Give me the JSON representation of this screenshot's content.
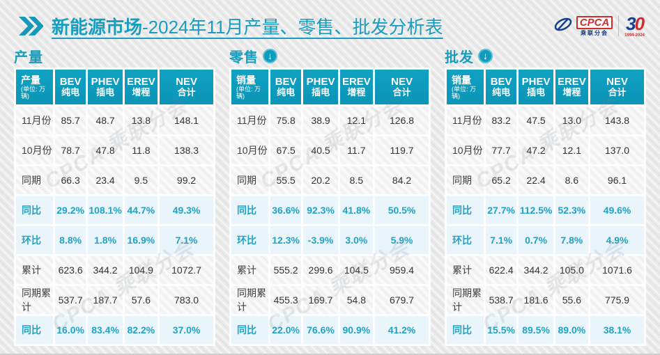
{
  "header": {
    "title_bold": "新能源市场",
    "title_rest": "-2024年11月产量、零售、批发分析表",
    "logo": {
      "cpca": "CPCA",
      "cpca_sub": "乘联分会",
      "anniversary_3": "3",
      "anniversary_0": "0",
      "years": "1994-2024"
    }
  },
  "watermark": "CPCA 乘联分会",
  "colors": {
    "teal_header": "#0e9cbe",
    "title_text": "#189dbe",
    "accent_text": "#22a2c4",
    "highlight_row_bg": "#e9f5fa"
  },
  "icons": {
    "title_chevron": "double-right-chevron",
    "section_arrow": "↓"
  },
  "chart_data": [
    {
      "type": "table",
      "key": "production",
      "title": "产量",
      "down_icon": false,
      "unit_label": "产量",
      "unit_sub": "(单位: 万辆)",
      "columns": [
        {
          "en": "BEV",
          "cn": "纯电"
        },
        {
          "en": "PHEV",
          "cn": "插电"
        },
        {
          "en": "EREV",
          "cn": "增程"
        },
        {
          "en": "NEV",
          "cn": "合计"
        }
      ],
      "rows": [
        {
          "label": "11月份",
          "values": [
            "85.7",
            "48.7",
            "13.8",
            "148.1"
          ],
          "highlight": false
        },
        {
          "label": "10月份",
          "values": [
            "78.7",
            "47.8",
            "11.8",
            "138.3"
          ],
          "highlight": false
        },
        {
          "label": "同期",
          "values": [
            "66.3",
            "23.4",
            "9.5",
            "99.2"
          ],
          "highlight": false
        },
        {
          "label": "同比",
          "values": [
            "29.2%",
            "108.1%",
            "44.7%",
            "49.3%"
          ],
          "highlight": true
        },
        {
          "label": "环比",
          "values": [
            "8.8%",
            "1.8%",
            "16.9%",
            "7.1%"
          ],
          "highlight": true
        },
        {
          "label": "累计",
          "values": [
            "623.6",
            "344.2",
            "104.9",
            "1072.7"
          ],
          "highlight": false
        },
        {
          "label": "同期累计",
          "values": [
            "537.7",
            "187.7",
            "57.6",
            "783.0"
          ],
          "highlight": false
        },
        {
          "label": "同比",
          "values": [
            "16.0%",
            "83.4%",
            "82.2%",
            "37.0%"
          ],
          "highlight": true
        }
      ]
    },
    {
      "type": "table",
      "key": "retail",
      "title": "零售",
      "down_icon": true,
      "unit_label": "销量",
      "unit_sub": "(单位: 万辆)",
      "columns": [
        {
          "en": "BEV",
          "cn": "纯电"
        },
        {
          "en": "PHEV",
          "cn": "插电"
        },
        {
          "en": "EREV",
          "cn": "增程"
        },
        {
          "en": "NEV",
          "cn": "合计"
        }
      ],
      "rows": [
        {
          "label": "11月份",
          "values": [
            "75.8",
            "38.9",
            "12.1",
            "126.8"
          ],
          "highlight": false
        },
        {
          "label": "10月份",
          "values": [
            "67.5",
            "40.5",
            "11.7",
            "119.7"
          ],
          "highlight": false
        },
        {
          "label": "同期",
          "values": [
            "55.5",
            "20.2",
            "8.5",
            "84.2"
          ],
          "highlight": false
        },
        {
          "label": "同比",
          "values": [
            "36.6%",
            "92.3%",
            "41.8%",
            "50.5%"
          ],
          "highlight": true
        },
        {
          "label": "环比",
          "values": [
            "12.3%",
            "-3.9%",
            "3.0%",
            "5.9%"
          ],
          "highlight": true
        },
        {
          "label": "累计",
          "values": [
            "555.2",
            "299.6",
            "104.5",
            "959.4"
          ],
          "highlight": false
        },
        {
          "label": "同期累计",
          "values": [
            "455.3",
            "169.7",
            "54.8",
            "679.7"
          ],
          "highlight": false
        },
        {
          "label": "同比",
          "values": [
            "22.0%",
            "76.6%",
            "90.9%",
            "41.2%"
          ],
          "highlight": true
        }
      ]
    },
    {
      "type": "table",
      "key": "wholesale",
      "title": "批发",
      "down_icon": true,
      "unit_label": "销量",
      "unit_sub": "(单位: 万辆)",
      "columns": [
        {
          "en": "BEV",
          "cn": "纯电"
        },
        {
          "en": "PHEV",
          "cn": "插电"
        },
        {
          "en": "EREV",
          "cn": "增程"
        },
        {
          "en": "NEV",
          "cn": "合计"
        }
      ],
      "rows": [
        {
          "label": "11月份",
          "values": [
            "83.2",
            "47.5",
            "13.0",
            "143.8"
          ],
          "highlight": false
        },
        {
          "label": "10月份",
          "values": [
            "77.7",
            "47.2",
            "12.1",
            "137.0"
          ],
          "highlight": false
        },
        {
          "label": "同期",
          "values": [
            "65.2",
            "22.4",
            "8.6",
            "96.1"
          ],
          "highlight": false
        },
        {
          "label": "同比",
          "values": [
            "27.7%",
            "112.5%",
            "52.3%",
            "49.6%"
          ],
          "highlight": true
        },
        {
          "label": "环比",
          "values": [
            "7.1%",
            "0.7%",
            "7.8%",
            "4.9%"
          ],
          "highlight": true
        },
        {
          "label": "累计",
          "values": [
            "622.4",
            "344.2",
            "105.0",
            "1071.6"
          ],
          "highlight": false
        },
        {
          "label": "同期累计",
          "values": [
            "538.7",
            "181.6",
            "55.6",
            "775.9"
          ],
          "highlight": false
        },
        {
          "label": "同比",
          "values": [
            "15.5%",
            "89.5%",
            "89.0%",
            "38.1%"
          ],
          "highlight": true
        }
      ]
    }
  ]
}
